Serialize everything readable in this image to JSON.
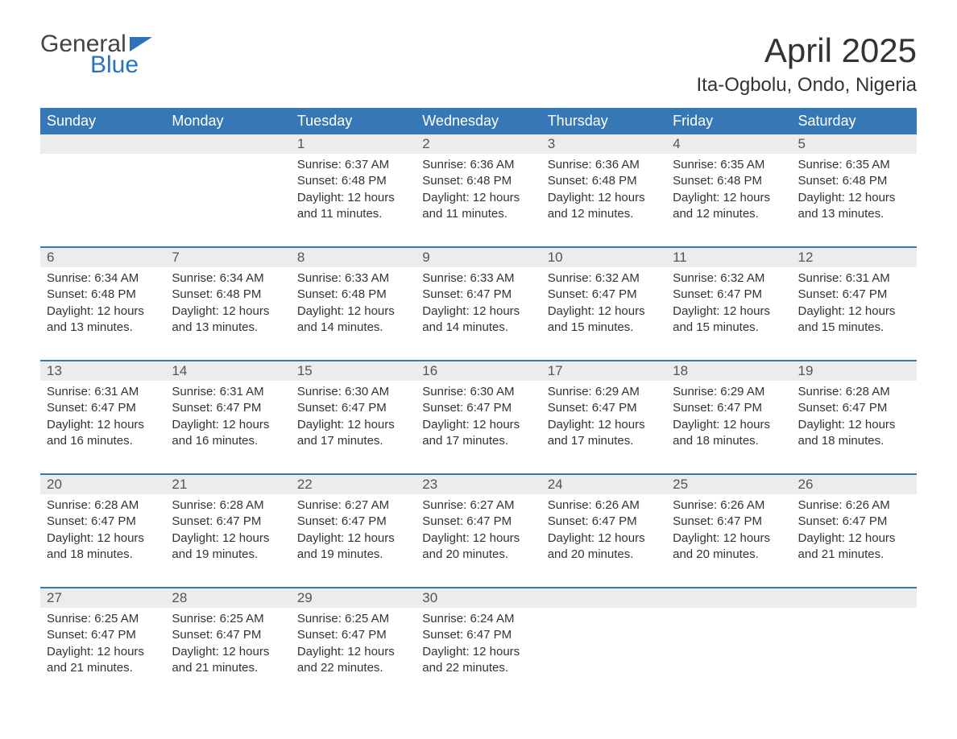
{
  "logo": {
    "line1": "General",
    "line2": "Blue"
  },
  "title": "April 2025",
  "subtitle": "Ita-Ogbolu, Ondo, Nigeria",
  "colors": {
    "header_bg": "#3678b6",
    "header_fg": "#ffffff",
    "daynum_bg": "#ececec",
    "row_border": "#3678b6",
    "page_bg": "#ffffff",
    "text": "#333333",
    "logo_accent": "#2a73b8"
  },
  "typography": {
    "title_fontsize": 42,
    "subtitle_fontsize": 24,
    "header_fontsize": 18,
    "cell_fontsize": 15,
    "font_family": "Segoe UI"
  },
  "calendar": {
    "type": "table",
    "columns": [
      "Sunday",
      "Monday",
      "Tuesday",
      "Wednesday",
      "Thursday",
      "Friday",
      "Saturday"
    ],
    "weeks": [
      [
        null,
        null,
        {
          "n": "1",
          "sr": "6:37 AM",
          "ss": "6:48 PM",
          "dl": "12 hours and 11 minutes."
        },
        {
          "n": "2",
          "sr": "6:36 AM",
          "ss": "6:48 PM",
          "dl": "12 hours and 11 minutes."
        },
        {
          "n": "3",
          "sr": "6:36 AM",
          "ss": "6:48 PM",
          "dl": "12 hours and 12 minutes."
        },
        {
          "n": "4",
          "sr": "6:35 AM",
          "ss": "6:48 PM",
          "dl": "12 hours and 12 minutes."
        },
        {
          "n": "5",
          "sr": "6:35 AM",
          "ss": "6:48 PM",
          "dl": "12 hours and 13 minutes."
        }
      ],
      [
        {
          "n": "6",
          "sr": "6:34 AM",
          "ss": "6:48 PM",
          "dl": "12 hours and 13 minutes."
        },
        {
          "n": "7",
          "sr": "6:34 AM",
          "ss": "6:48 PM",
          "dl": "12 hours and 13 minutes."
        },
        {
          "n": "8",
          "sr": "6:33 AM",
          "ss": "6:48 PM",
          "dl": "12 hours and 14 minutes."
        },
        {
          "n": "9",
          "sr": "6:33 AM",
          "ss": "6:47 PM",
          "dl": "12 hours and 14 minutes."
        },
        {
          "n": "10",
          "sr": "6:32 AM",
          "ss": "6:47 PM",
          "dl": "12 hours and 15 minutes."
        },
        {
          "n": "11",
          "sr": "6:32 AM",
          "ss": "6:47 PM",
          "dl": "12 hours and 15 minutes."
        },
        {
          "n": "12",
          "sr": "6:31 AM",
          "ss": "6:47 PM",
          "dl": "12 hours and 15 minutes."
        }
      ],
      [
        {
          "n": "13",
          "sr": "6:31 AM",
          "ss": "6:47 PM",
          "dl": "12 hours and 16 minutes."
        },
        {
          "n": "14",
          "sr": "6:31 AM",
          "ss": "6:47 PM",
          "dl": "12 hours and 16 minutes."
        },
        {
          "n": "15",
          "sr": "6:30 AM",
          "ss": "6:47 PM",
          "dl": "12 hours and 17 minutes."
        },
        {
          "n": "16",
          "sr": "6:30 AM",
          "ss": "6:47 PM",
          "dl": "12 hours and 17 minutes."
        },
        {
          "n": "17",
          "sr": "6:29 AM",
          "ss": "6:47 PM",
          "dl": "12 hours and 17 minutes."
        },
        {
          "n": "18",
          "sr": "6:29 AM",
          "ss": "6:47 PM",
          "dl": "12 hours and 18 minutes."
        },
        {
          "n": "19",
          "sr": "6:28 AM",
          "ss": "6:47 PM",
          "dl": "12 hours and 18 minutes."
        }
      ],
      [
        {
          "n": "20",
          "sr": "6:28 AM",
          "ss": "6:47 PM",
          "dl": "12 hours and 18 minutes."
        },
        {
          "n": "21",
          "sr": "6:28 AM",
          "ss": "6:47 PM",
          "dl": "12 hours and 19 minutes."
        },
        {
          "n": "22",
          "sr": "6:27 AM",
          "ss": "6:47 PM",
          "dl": "12 hours and 19 minutes."
        },
        {
          "n": "23",
          "sr": "6:27 AM",
          "ss": "6:47 PM",
          "dl": "12 hours and 20 minutes."
        },
        {
          "n": "24",
          "sr": "6:26 AM",
          "ss": "6:47 PM",
          "dl": "12 hours and 20 minutes."
        },
        {
          "n": "25",
          "sr": "6:26 AM",
          "ss": "6:47 PM",
          "dl": "12 hours and 20 minutes."
        },
        {
          "n": "26",
          "sr": "6:26 AM",
          "ss": "6:47 PM",
          "dl": "12 hours and 21 minutes."
        }
      ],
      [
        {
          "n": "27",
          "sr": "6:25 AM",
          "ss": "6:47 PM",
          "dl": "12 hours and 21 minutes."
        },
        {
          "n": "28",
          "sr": "6:25 AM",
          "ss": "6:47 PM",
          "dl": "12 hours and 21 minutes."
        },
        {
          "n": "29",
          "sr": "6:25 AM",
          "ss": "6:47 PM",
          "dl": "12 hours and 22 minutes."
        },
        {
          "n": "30",
          "sr": "6:24 AM",
          "ss": "6:47 PM",
          "dl": "12 hours and 22 minutes."
        },
        null,
        null,
        null
      ]
    ],
    "labels": {
      "sunrise": "Sunrise: ",
      "sunset": "Sunset: ",
      "daylight": "Daylight: "
    }
  }
}
